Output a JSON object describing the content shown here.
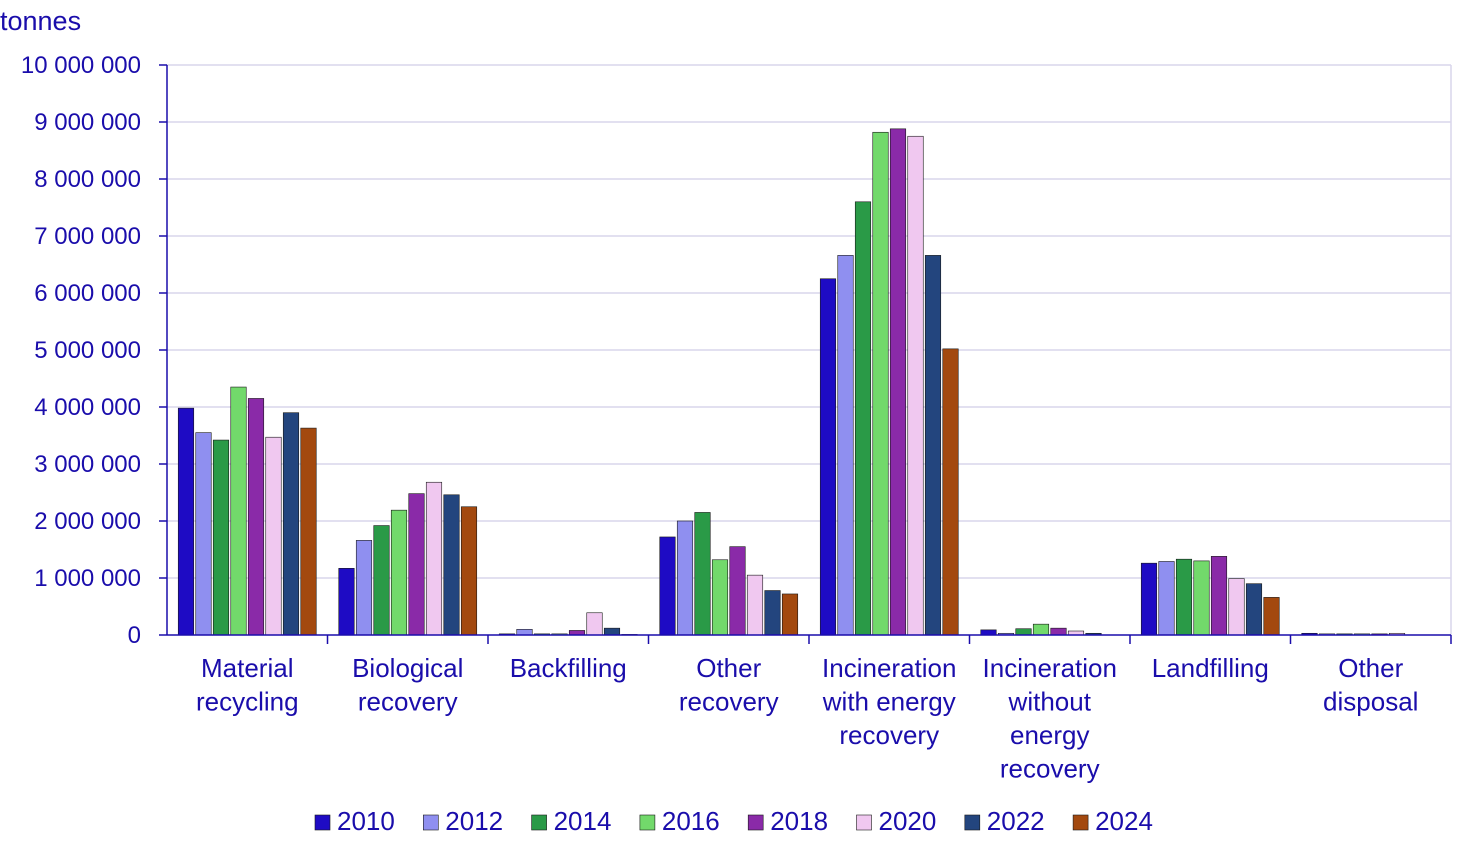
{
  "chart_data": {
    "type": "bar",
    "ylabel": "tonnes",
    "ylim": [
      0,
      10000000
    ],
    "yticks": [
      0,
      1000000,
      2000000,
      3000000,
      4000000,
      5000000,
      6000000,
      7000000,
      8000000,
      9000000,
      10000000
    ],
    "ytick_labels": [
      "0",
      "1 000 000",
      "2 000 000",
      "3 000 000",
      "4 000 000",
      "5 000 000",
      "6 000 000",
      "7 000 000",
      "8 000 000",
      "9 000 000",
      "10 000 000"
    ],
    "categories": [
      [
        "Material",
        "recycling"
      ],
      [
        "Biological",
        "recovery"
      ],
      [
        "Backfilling"
      ],
      [
        "Other",
        "recovery"
      ],
      [
        "Incineration",
        "with energy",
        "recovery"
      ],
      [
        "Incineration",
        "without",
        "energy",
        "recovery"
      ],
      [
        "Landfilling"
      ],
      [
        "Other",
        "disposal"
      ]
    ],
    "grid": true,
    "legend_position": "bottom",
    "series": [
      {
        "name": "2010",
        "color": "#1e0bc4",
        "values": [
          3980000,
          1170000,
          20000,
          1720000,
          6250000,
          90000,
          1260000,
          30000
        ]
      },
      {
        "name": "2012",
        "color": "#8f8ff0",
        "values": [
          3550000,
          1660000,
          100000,
          2000000,
          6660000,
          30000,
          1290000,
          20000
        ]
      },
      {
        "name": "2014",
        "color": "#2a9a47",
        "values": [
          3420000,
          1920000,
          20000,
          2150000,
          7600000,
          110000,
          1330000,
          20000
        ]
      },
      {
        "name": "2016",
        "color": "#72d96b",
        "values": [
          4350000,
          2190000,
          20000,
          1320000,
          8820000,
          190000,
          1300000,
          20000
        ]
      },
      {
        "name": "2018",
        "color": "#8a2aa8",
        "values": [
          4150000,
          2480000,
          80000,
          1550000,
          8880000,
          120000,
          1380000,
          20000
        ]
      },
      {
        "name": "2020",
        "color": "#f0c8f0",
        "values": [
          3470000,
          2680000,
          390000,
          1050000,
          8750000,
          70000,
          990000,
          30000
        ]
      },
      {
        "name": "2022",
        "color": "#23457e",
        "values": [
          3900000,
          2460000,
          120000,
          780000,
          6660000,
          30000,
          900000,
          0
        ]
      },
      {
        "name": "2024",
        "color": "#a3490f",
        "values": [
          3630000,
          2250000,
          10000,
          720000,
          5020000,
          0,
          660000,
          0
        ]
      }
    ]
  }
}
